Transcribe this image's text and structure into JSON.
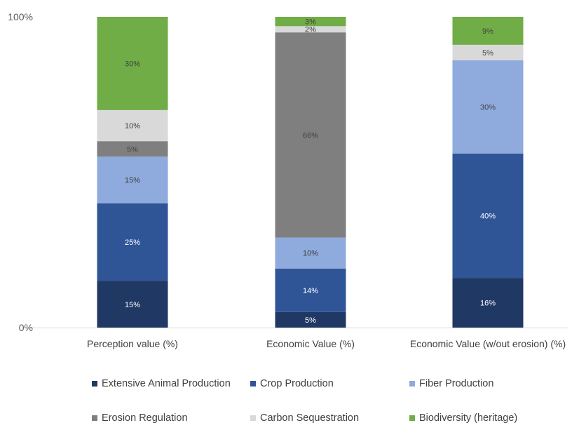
{
  "chart_data": {
    "type": "bar",
    "stacked": "percent",
    "categories": [
      "Perception value (%)",
      "Economic Value (%)",
      "Economic Value (w/out erosion) (%)"
    ],
    "y_ticks": [
      "0%",
      "100%"
    ],
    "ylim": [
      0,
      100
    ],
    "grid": false,
    "legend_position": "bottom",
    "series": [
      {
        "name": "Extensive Animal Production",
        "color": "#203864",
        "label_color": "#ffffff",
        "values": [
          15,
          5,
          16
        ],
        "labels": [
          "15%",
          "5%",
          "16%"
        ]
      },
      {
        "name": "Crop Production",
        "color": "#2F5597",
        "label_color": "#ffffff",
        "values": [
          25,
          14,
          40
        ],
        "labels": [
          "25%",
          "14%",
          "40%"
        ]
      },
      {
        "name": "Fiber Production",
        "color": "#8FAADC",
        "label_color": "#404040",
        "values": [
          15,
          10,
          30
        ],
        "labels": [
          "15%",
          "10%",
          "30%"
        ]
      },
      {
        "name": "Erosion Regulation",
        "color": "#7F7F7F",
        "label_color": "#404040",
        "values": [
          5,
          66,
          0
        ],
        "labels": [
          "5%",
          "66%",
          ""
        ]
      },
      {
        "name": "Carbon Sequestration",
        "color": "#D9D9D9",
        "label_color": "#404040",
        "values": [
          10,
          2,
          5
        ],
        "labels": [
          "10%",
          "2%",
          "5%"
        ]
      },
      {
        "name": "Biodiversity (heritage)",
        "color": "#70AD47",
        "label_color": "#404040",
        "values": [
          30,
          3,
          9
        ],
        "labels": [
          "30%",
          "3%",
          "9%"
        ]
      }
    ]
  }
}
